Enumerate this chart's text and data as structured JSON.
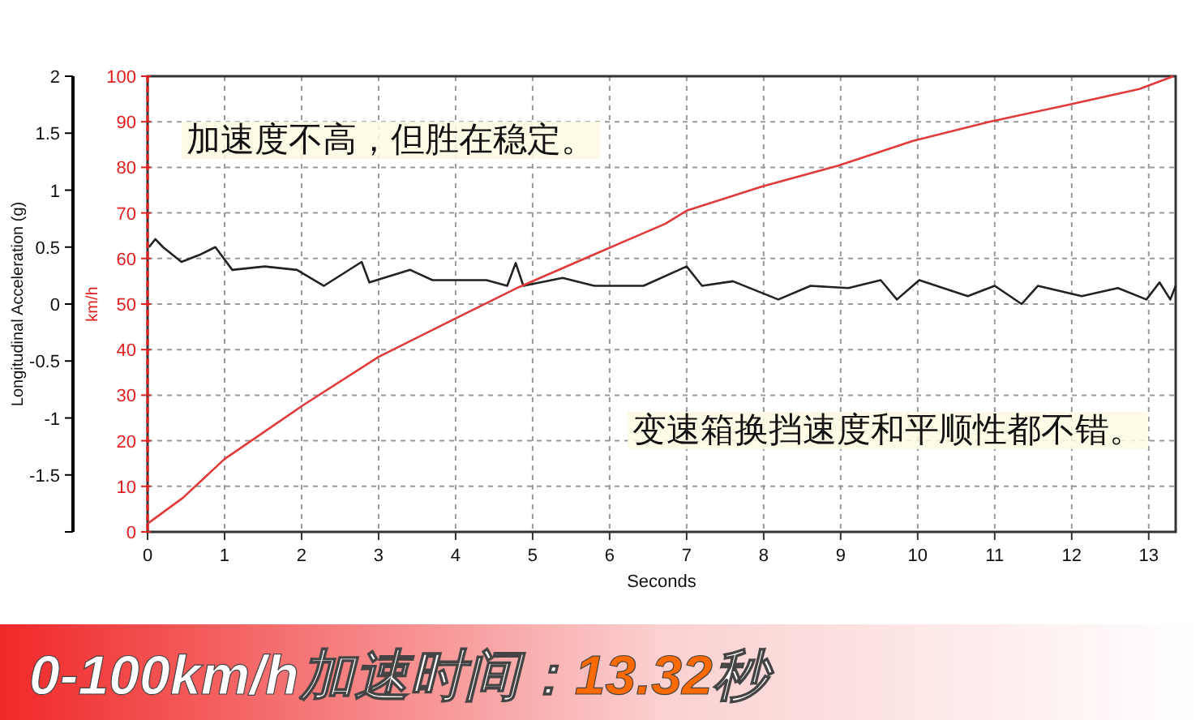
{
  "chart_data": {
    "type": "line",
    "xlabel": "Seconds",
    "ylabel": "Longitudinal Acceleration (g)",
    "y2label": "km/h",
    "xlim": [
      0,
      13.35
    ],
    "xticks": [
      0,
      1,
      2,
      3,
      4,
      5,
      6,
      7,
      8,
      9,
      10,
      11,
      12,
      13
    ],
    "ylim": [
      -2,
      2
    ],
    "yticks": [
      {
        "value": -2,
        "label": null
      },
      -1.5,
      -1,
      -0.5,
      0,
      0.5,
      1,
      1.5,
      2
    ],
    "y2lim": [
      0,
      100
    ],
    "y2ticks": [
      0,
      10,
      20,
      30,
      40,
      50,
      60,
      70,
      80,
      90,
      100
    ],
    "grid": true,
    "series": [
      {
        "color": "#222222",
        "x": [
          0.02,
          0.1,
          0.2,
          0.44,
          0.67,
          0.88,
          1.1,
          1.52,
          1.94,
          2.29,
          2.78,
          2.88,
          3.41,
          3.7,
          4.4,
          4.67,
          4.78,
          4.88,
          5.39,
          5.8,
          6.44,
          7.0,
          7.2,
          7.6,
          8.19,
          8.61,
          9.1,
          9.52,
          9.73,
          10.02,
          10.65,
          11.0,
          11.35,
          11.56,
          12.13,
          12.6,
          12.97,
          13.14,
          13.28,
          13.35
        ],
        "values": [
          0.5,
          0.57,
          0.5,
          0.37,
          0.43,
          0.5,
          0.3,
          0.33,
          0.3,
          0.16,
          0.37,
          0.19,
          0.3,
          0.21,
          0.21,
          0.16,
          0.36,
          0.16,
          0.23,
          0.16,
          0.16,
          0.33,
          0.16,
          0.2,
          0.04,
          0.16,
          0.14,
          0.21,
          0.04,
          0.21,
          0.07,
          0.16,
          0,
          0.16,
          0.07,
          0.14,
          0.04,
          0.19,
          0.04,
          0.16
        ]
      },
      {
        "color": "#e03a3a",
        "axis": "y2",
        "x": [
          0,
          0.46,
          1.0,
          2.02,
          3.0,
          3.97,
          4.82,
          5.8,
          6.72,
          7.0,
          7.98,
          8.97,
          9.94,
          10.93,
          11.92,
          12.88,
          13.32
        ],
        "values": [
          1.8,
          7.5,
          16,
          27.8,
          38.4,
          46.6,
          53.7,
          60.9,
          67.6,
          70.5,
          75.8,
          80.4,
          85.8,
          90,
          93.6,
          97.2,
          100
        ]
      }
    ],
    "annotations": [
      "加速度不高，但胜在稳定。",
      "变速箱换挡速度和平顺性都不错。",
      "0-100km/h加速时间：",
      "13.32",
      "秒"
    ]
  }
}
